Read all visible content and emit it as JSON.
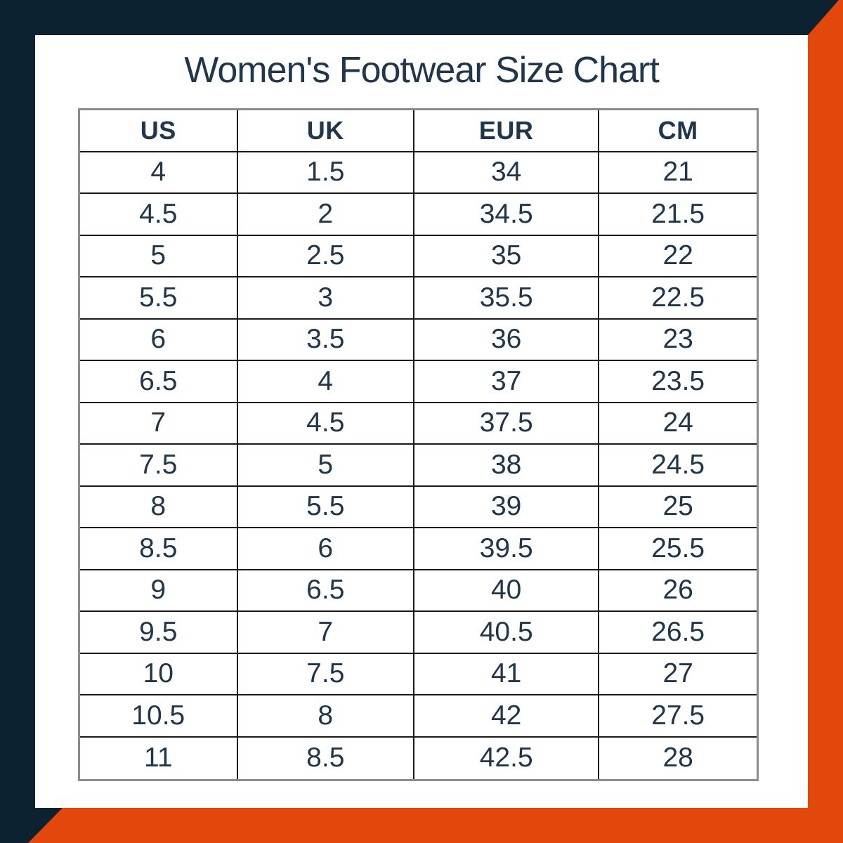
{
  "title": "Women's Footwear Size Chart",
  "colors": {
    "navy": "#0D2231",
    "orange": "#E2470B",
    "card": "#FFFFFF",
    "text": "#20364A",
    "grid_line": "#1A1A1A",
    "outer_border": "#8C8C8C"
  },
  "table": {
    "headers": [
      "US",
      "UK",
      "EUR",
      "CM"
    ],
    "rows": [
      [
        "4",
        "1.5",
        "34",
        "21"
      ],
      [
        "4.5",
        "2",
        "34.5",
        "21.5"
      ],
      [
        "5",
        "2.5",
        "35",
        "22"
      ],
      [
        "5.5",
        "3",
        "35.5",
        "22.5"
      ],
      [
        "6",
        "3.5",
        "36",
        "23"
      ],
      [
        "6.5",
        "4",
        "37",
        "23.5"
      ],
      [
        "7",
        "4.5",
        "37.5",
        "24"
      ],
      [
        "7.5",
        "5",
        "38",
        "24.5"
      ],
      [
        "8",
        "5.5",
        "39",
        "25"
      ],
      [
        "8.5",
        "6",
        "39.5",
        "25.5"
      ],
      [
        "9",
        "6.5",
        "40",
        "26"
      ],
      [
        "9.5",
        "7",
        "40.5",
        "26.5"
      ],
      [
        "10",
        "7.5",
        "41",
        "27"
      ],
      [
        "10.5",
        "8",
        "42",
        "27.5"
      ],
      [
        "11",
        "8.5",
        "42.5",
        "28"
      ]
    ]
  },
  "chart_data": {
    "type": "table",
    "title": "Women's Footwear Size Chart",
    "columns": [
      "US",
      "UK",
      "EUR",
      "CM"
    ],
    "rows": [
      [
        4,
        1.5,
        34,
        21
      ],
      [
        4.5,
        2,
        34.5,
        21.5
      ],
      [
        5,
        2.5,
        35,
        22
      ],
      [
        5.5,
        3,
        35.5,
        22.5
      ],
      [
        6,
        3.5,
        36,
        23
      ],
      [
        6.5,
        4,
        37,
        23.5
      ],
      [
        7,
        4.5,
        37.5,
        24
      ],
      [
        7.5,
        5,
        38,
        24.5
      ],
      [
        8,
        5.5,
        39,
        25
      ],
      [
        8.5,
        6,
        39.5,
        25.5
      ],
      [
        9,
        6.5,
        40,
        26
      ],
      [
        9.5,
        7,
        40.5,
        26.5
      ],
      [
        10,
        7.5,
        41,
        27
      ],
      [
        10.5,
        8,
        42,
        27.5
      ],
      [
        11,
        8.5,
        42.5,
        28
      ]
    ]
  }
}
